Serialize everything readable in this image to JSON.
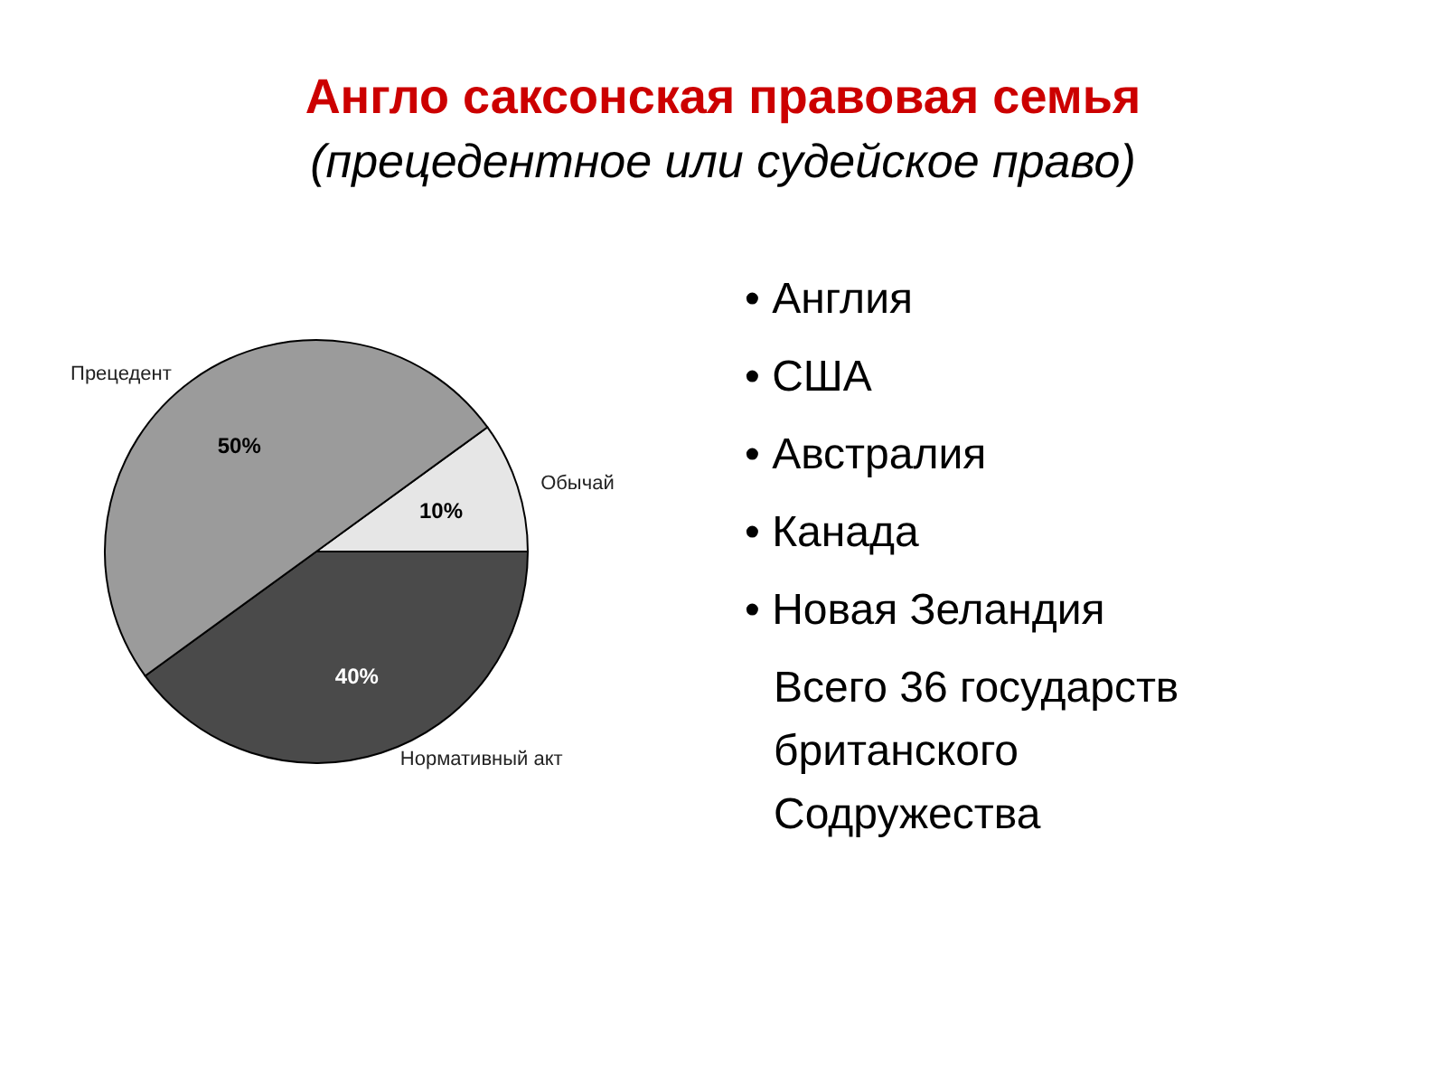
{
  "chart_data": {
    "type": "pie",
    "title": "Англо саксонская правовая семья",
    "subtitle": "(прецедентное или судейское право)",
    "categories": [
      "Обычай",
      "Нормативный акт",
      "Прецедент"
    ],
    "values": [
      10,
      40,
      50
    ],
    "value_labels": [
      "10%",
      "40%",
      "50%"
    ],
    "colors": [
      "#e6e6e6",
      "#4a4a4a",
      "#9b9b9b"
    ],
    "annotations": [
      "• Англия",
      "• США",
      "• Австралия",
      "• Канада",
      "• Новая Зеландия",
      "Всего 36 государств\nбританского\nСодружества"
    ]
  }
}
